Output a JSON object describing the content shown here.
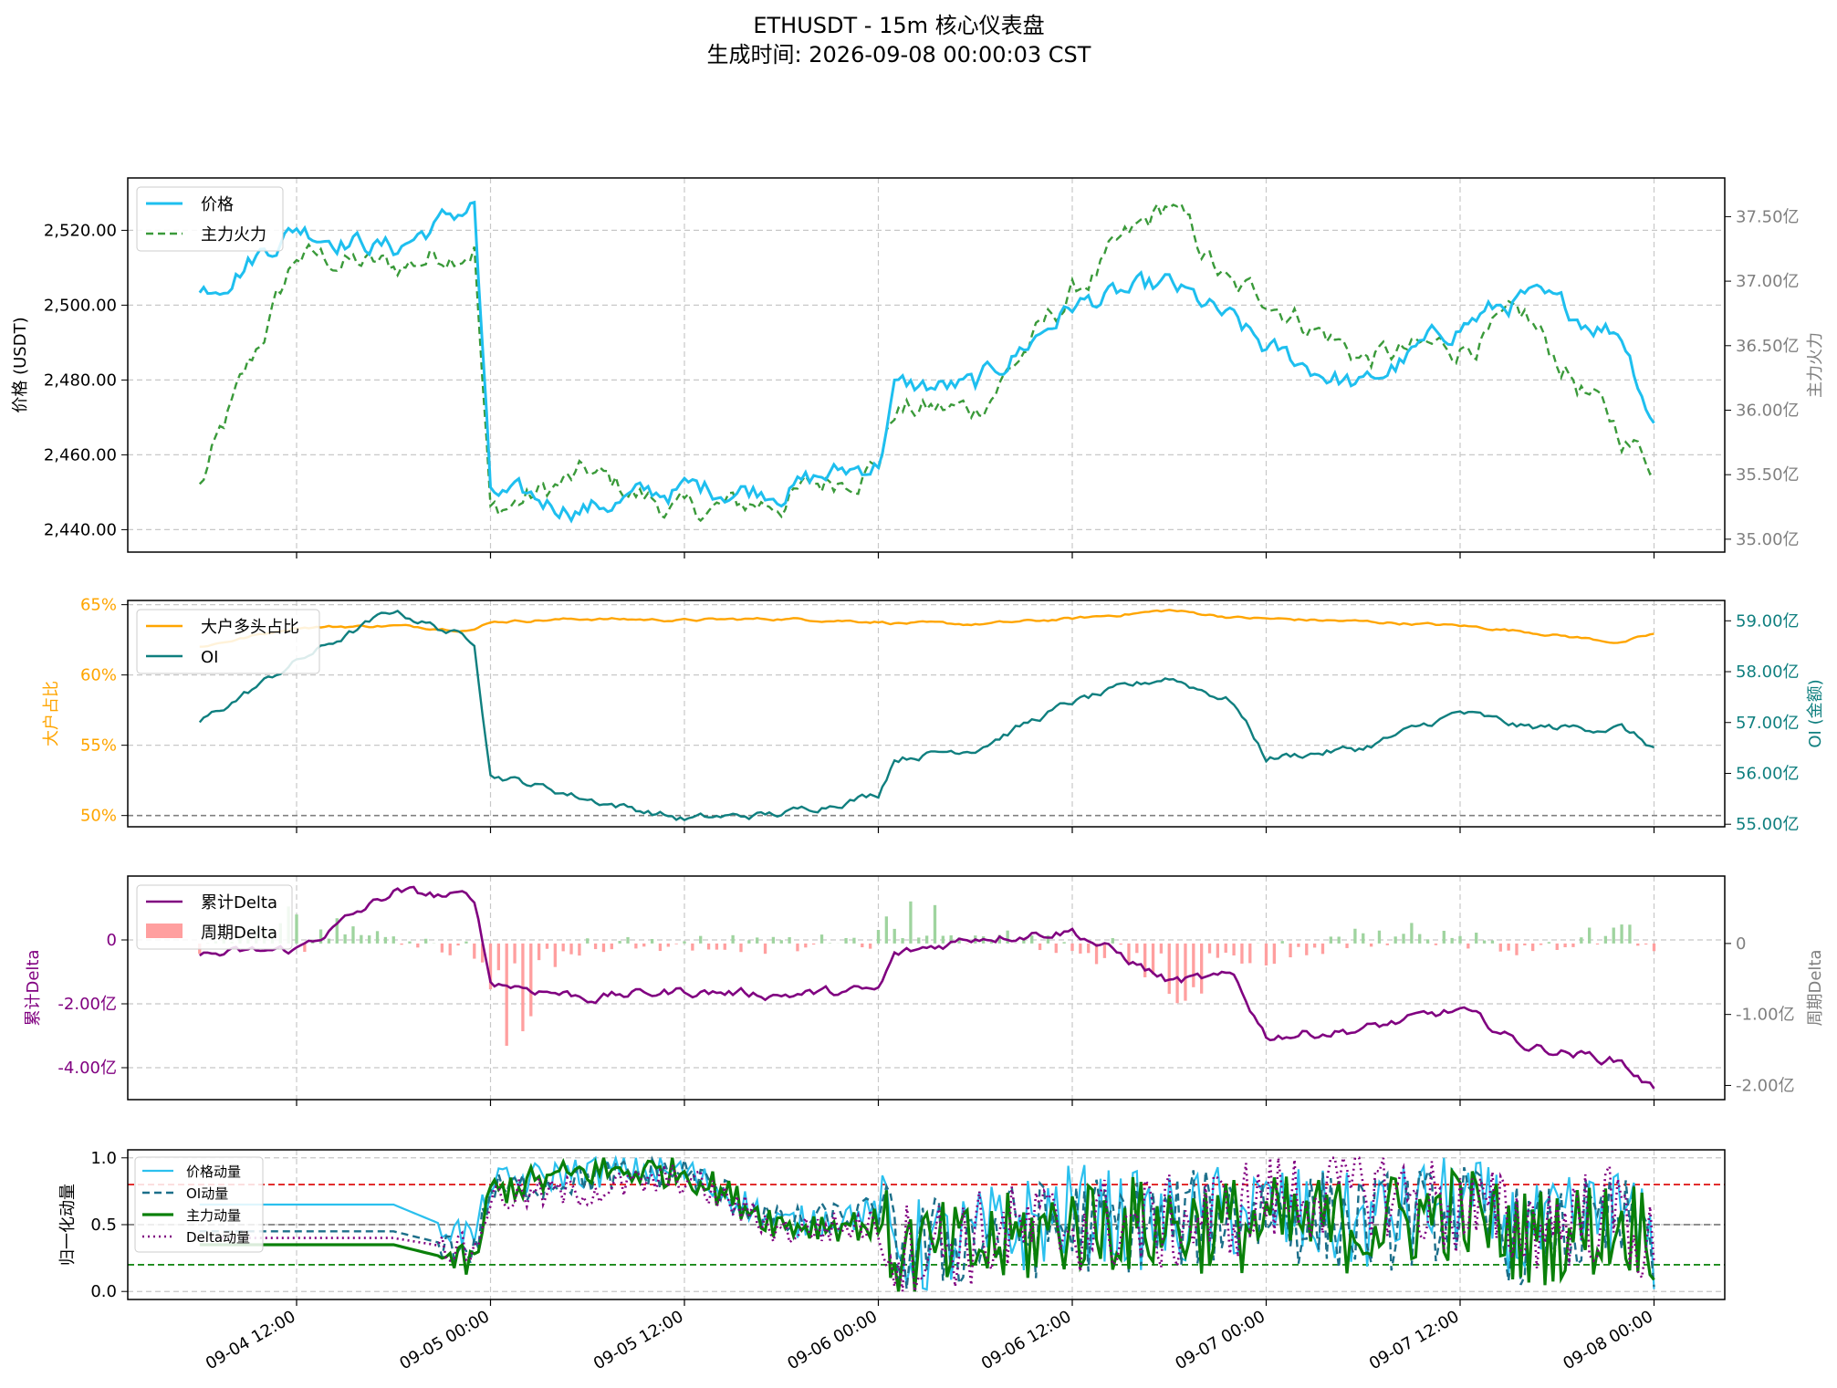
{
  "figure": {
    "title_line1": "ETHUSDT - 15m 核心仪表盘",
    "title_line2": "生成时间: 2026-09-08 00:00:03 CST"
  },
  "x_axis": {
    "ticks": [
      "09-04 12:00",
      "09-05 00:00",
      "09-05 12:00",
      "09-06 00:00",
      "09-06 12:00",
      "09-07 00:00",
      "09-07 12:00",
      "09-08 00:00"
    ]
  },
  "colors": {
    "price": "#1ebfef",
    "main_force": "#3a9a3a",
    "long_ratio": "#ffa500",
    "oi": "#0f7f7f",
    "cum_delta": "#800080",
    "delta_pos": "#9fd49f",
    "delta_neg": "#ff9f9f",
    "price_mom": "#2bc0ee",
    "oi_mom": "#1c6f8a",
    "mf_mom": "#0a800a",
    "delta_mom": "#800080"
  },
  "chart_data": [
    {
      "type": "line",
      "panel": "price",
      "ylabel": "价格 (USDT)",
      "y2label": "主力火力",
      "ylim": [
        2434,
        2534
      ],
      "y2lim": [
        34.9,
        37.8
      ],
      "yticks": [
        "2,440.00",
        "2,460.00",
        "2,480.00",
        "2,500.00",
        "2,520.00"
      ],
      "y2ticks": [
        "35.00亿",
        "35.50亿",
        "36.00亿",
        "36.50亿",
        "37.00亿",
        "37.50亿"
      ],
      "legend": [
        "价格",
        "主力火力"
      ],
      "legend_position": "upper-left",
      "x_hours_from_09-04_00:00": [
        6,
        12,
        18,
        23,
        24,
        30,
        36,
        42,
        48,
        49,
        54,
        60,
        66,
        70,
        72,
        78,
        84,
        88,
        94,
        96
      ],
      "series": [
        {
          "name": "价格",
          "values": [
            2503,
            2521,
            2515,
            2527,
            2449,
            2446,
            2451,
            2451,
            2458,
            2478,
            2478,
            2500,
            2505,
            2495,
            2488,
            2478,
            2495,
            2502,
            2493,
            2469
          ]
        },
        {
          "name": "主力火力",
          "values": [
            35.4,
            37.2,
            37.1,
            37.3,
            35.2,
            35.5,
            35.2,
            35.3,
            35.6,
            36.0,
            36.0,
            36.9,
            37.6,
            36.9,
            36.9,
            36.4,
            36.5,
            36.7,
            35.8,
            35.6
          ]
        }
      ]
    },
    {
      "type": "line",
      "panel": "ratio_oi",
      "ylabel": "大户占比",
      "y2label": "OI (金额)",
      "ylim": [
        49.2,
        65.3
      ],
      "y2lim": [
        54.95,
        59.4
      ],
      "yticks": [
        "50%",
        "55%",
        "60%",
        "65%"
      ],
      "y2ticks": [
        "55.00亿",
        "56.00亿",
        "57.00亿",
        "58.00亿",
        "59.00亿"
      ],
      "legend": [
        "大户多头占比",
        "OI"
      ],
      "legend_position": "upper-left",
      "x_hours_from_09-04_00:00": [
        6,
        12,
        18,
        23,
        24,
        30,
        36,
        42,
        48,
        49,
        54,
        60,
        66,
        70,
        72,
        78,
        84,
        88,
        94,
        96
      ],
      "series": [
        {
          "name": "大户多头占比",
          "values": [
            62.0,
            63.4,
            63.5,
            63.2,
            63.8,
            64.0,
            63.9,
            64.0,
            63.8,
            63.7,
            63.6,
            64.0,
            64.6,
            64.1,
            64.0,
            63.8,
            63.5,
            63.1,
            62.3,
            62.9
          ]
        },
        {
          "name": "OI",
          "values": [
            57.0,
            58.2,
            59.2,
            58.6,
            56.0,
            55.5,
            55.1,
            55.2,
            55.6,
            56.3,
            56.5,
            57.4,
            57.9,
            57.4,
            56.3,
            56.5,
            57.2,
            56.9,
            56.9,
            56.5
          ]
        }
      ]
    },
    {
      "type": "bar+line",
      "panel": "delta",
      "ylabel": "累计Delta",
      "y2label": "周期Delta",
      "ylim": [
        -5.0,
        2.0
      ],
      "y2lim": [
        -2.2,
        0.95
      ],
      "yticks": [
        "-4.00亿",
        "-2.00亿",
        "0"
      ],
      "y2ticks": [
        "-2.00亿",
        "-1.00亿",
        "0"
      ],
      "legend": [
        "累计Delta",
        "周期Delta"
      ],
      "legend_position": "upper-left",
      "x_hours_from_09-04_00:00": [
        6,
        12,
        18,
        23,
        24,
        30,
        36,
        42,
        48,
        49,
        54,
        60,
        66,
        70,
        72,
        78,
        84,
        88,
        94,
        96
      ],
      "series": [
        {
          "name": "累计Delta",
          "values": [
            -0.5,
            -0.3,
            1.5,
            1.3,
            -1.3,
            -1.8,
            -1.6,
            -1.7,
            -1.6,
            -0.5,
            0.1,
            0.3,
            -1.3,
            -1.2,
            -3.0,
            -2.8,
            -2.2,
            -3.3,
            -3.8,
            -4.7
          ]
        },
        {
          "name": "周期Delta",
          "values": [
            -0.2,
            0.7,
            0.2,
            -0.3,
            -2.1,
            -0.1,
            0.05,
            -0.05,
            0.1,
            0.7,
            0.3,
            -0.1,
            -1.1,
            -0.3,
            -0.4,
            0.2,
            0.3,
            -0.4,
            0.4,
            -0.3
          ]
        }
      ]
    },
    {
      "type": "line",
      "panel": "momentum",
      "ylabel": "归一化动量",
      "ylim": [
        -0.06,
        1.06
      ],
      "yticks": [
        "0.0",
        "0.5",
        "1.0"
      ],
      "reference_lines": [
        0.8,
        0.5,
        0.2
      ],
      "legend": [
        "价格动量",
        "OI动量",
        "主力动量",
        "Delta动量"
      ],
      "legend_position": "upper-left",
      "x_hours_from_09-04_00:00": [
        6,
        12,
        18,
        23,
        24,
        30,
        36,
        42,
        48,
        49,
        54,
        60,
        66,
        70,
        72,
        78,
        84,
        88,
        94,
        96
      ],
      "series": [
        {
          "name": "价格动量",
          "values": [
            0.65,
            0.65,
            0.65,
            0.4,
            0.8,
            0.9,
            0.9,
            0.5,
            0.6,
            0.3,
            0.4,
            0.6,
            0.5,
            0.6,
            0.6,
            0.5,
            0.7,
            0.4,
            0.6,
            0.3
          ]
        },
        {
          "name": "OI动量",
          "values": [
            0.45,
            0.45,
            0.45,
            0.3,
            0.75,
            0.85,
            0.9,
            0.5,
            0.6,
            0.3,
            0.4,
            0.5,
            0.5,
            0.6,
            0.6,
            0.5,
            0.6,
            0.4,
            0.5,
            0.35
          ]
        },
        {
          "name": "主力动量",
          "values": [
            0.35,
            0.35,
            0.35,
            0.2,
            0.75,
            0.9,
            0.9,
            0.5,
            0.5,
            0.3,
            0.3,
            0.5,
            0.5,
            0.5,
            0.5,
            0.5,
            0.6,
            0.4,
            0.5,
            0.45
          ]
        },
        {
          "name": "Delta动量",
          "values": [
            0.4,
            0.4,
            0.4,
            0.3,
            0.7,
            0.75,
            0.85,
            0.45,
            0.5,
            0.3,
            0.4,
            0.5,
            0.5,
            0.6,
            0.7,
            0.8,
            0.6,
            0.5,
            0.6,
            0.25
          ]
        }
      ]
    }
  ]
}
